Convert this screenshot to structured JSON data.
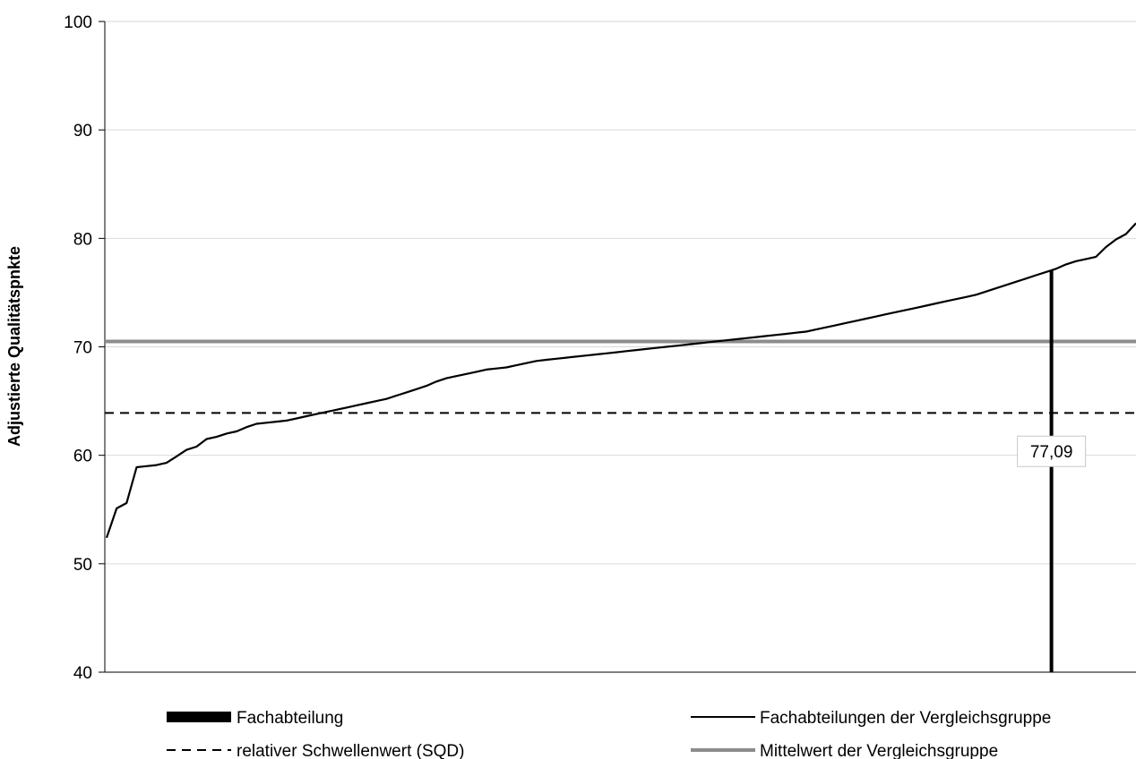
{
  "chart_data": {
    "type": "line",
    "title": "",
    "xlabel": "",
    "ylabel": "Adjustierte Qualitätspnkte",
    "ylim": [
      40,
      100
    ],
    "y_ticks": [
      "40",
      "50",
      "60",
      "70",
      "80",
      "90",
      "100"
    ],
    "grid": "horizontal",
    "legend_position": "bottom",
    "series": [
      {
        "name": "Fachabteilungen der Vergleichsgruppe",
        "style": "solid-black",
        "values": [
          52.4,
          55.1,
          55.6,
          58.9,
          59.0,
          59.1,
          59.3,
          59.9,
          60.5,
          60.8,
          61.5,
          61.7,
          62.0,
          62.2,
          62.6,
          62.9,
          63.0,
          63.1,
          63.2,
          63.4,
          63.6,
          63.8,
          64.0,
          64.2,
          64.4,
          64.6,
          64.8,
          65.0,
          65.2,
          65.5,
          65.8,
          66.1,
          66.4,
          66.8,
          67.1,
          67.3,
          67.5,
          67.7,
          67.9,
          68.0,
          68.1,
          68.3,
          68.5,
          68.7,
          68.8,
          68.9,
          69.0,
          69.1,
          69.2,
          69.3,
          69.4,
          69.5,
          69.6,
          69.7,
          69.8,
          69.9,
          70.0,
          70.1,
          70.2,
          70.3,
          70.4,
          70.5,
          70.6,
          70.7,
          70.8,
          70.9,
          71.0,
          71.1,
          71.2,
          71.3,
          71.4,
          71.6,
          71.8,
          72.0,
          72.2,
          72.4,
          72.6,
          72.8,
          73.0,
          73.2,
          73.4,
          73.6,
          73.8,
          74.0,
          74.2,
          74.4,
          74.6,
          74.8,
          75.1,
          75.4,
          75.7,
          76.0,
          76.3,
          76.6,
          76.9,
          77.2,
          77.6,
          77.9,
          78.1,
          78.3,
          79.2,
          79.9,
          80.4,
          81.4
        ]
      },
      {
        "name": "relativer Schwellenwert (SQD)",
        "style": "dashed-black",
        "value": 63.9
      },
      {
        "name": "Mittelwert der Vergleichsgruppe",
        "style": "solid-gray",
        "value": 70.5
      },
      {
        "name": "Fachabteilung",
        "style": "bar-black",
        "value": 77.09,
        "label": "77,09",
        "position_fraction": 0.918
      }
    ]
  },
  "legend": {
    "fachabteilung": "Fachabteilung",
    "vergleichsgruppe": "Fachabteilungen der Vergleichsgruppe",
    "schwellenwert": "relativer Schwellenwert (SQD)",
    "mittelwert": "Mittelwert der Vergleichsgruppe"
  },
  "colors": {
    "curve": "#000000",
    "threshold": "#000000",
    "mean": "#8c8c8c",
    "bar": "#000000",
    "grid": "#d9d9d9",
    "axis": "#000000"
  }
}
